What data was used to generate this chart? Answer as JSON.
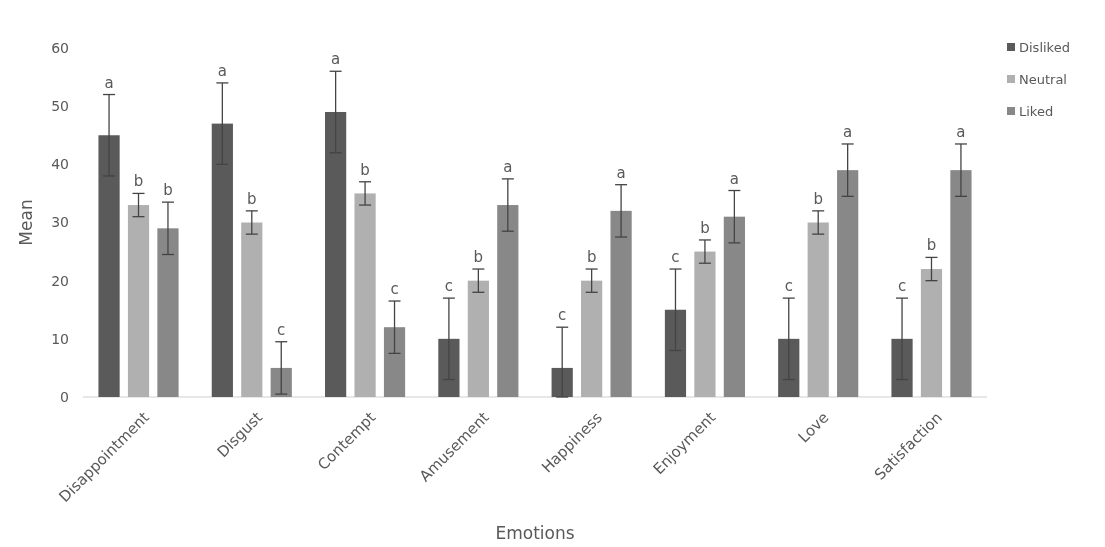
{
  "chart_data": {
    "type": "bar",
    "xlabel": "Emotions",
    "ylabel": "Mean",
    "categories": [
      "Disappointment",
      "Disgust",
      "Contempt",
      "Amusement",
      "Happiness",
      "Enjoyment",
      "Love",
      "Satisfaction"
    ],
    "series": [
      {
        "name": "Disliked",
        "color": "#5a5a5a",
        "values": [
          45,
          47,
          49,
          10,
          5,
          15,
          10,
          10
        ],
        "errors": [
          7,
          7,
          7,
          7,
          [
            0,
            12
          ],
          7,
          7,
          7
        ]
      },
      {
        "name": "Neutral",
        "color": "#b0b0b0",
        "values": [
          33,
          30,
          35,
          20,
          20,
          25,
          30,
          22
        ],
        "errors": [
          2,
          2,
          2,
          2,
          2,
          2,
          2,
          2
        ]
      },
      {
        "name": "Liked",
        "color": "#888888",
        "values": [
          29,
          5,
          12,
          33,
          32,
          31,
          39,
          39
        ],
        "errors": [
          4.5,
          4.5,
          4.5,
          4.5,
          4.5,
          4.5,
          4.5,
          4.5
        ]
      }
    ],
    "ylim": [
      0,
      60
    ],
    "yticks": [
      0,
      10,
      20,
      30,
      40,
      50,
      60
    ],
    "legend": "top right",
    "annotations": [
      "a",
      "b",
      "b",
      "a",
      "b",
      "c",
      "a",
      "b",
      "c",
      "c",
      "b",
      "a",
      "c",
      "b",
      "a",
      "c",
      "b",
      "a",
      "c",
      "b",
      "a",
      "c",
      "b",
      "a"
    ]
  }
}
